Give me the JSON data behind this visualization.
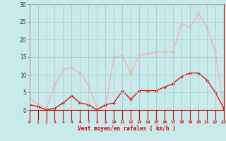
{
  "hours": [
    0,
    1,
    2,
    3,
    4,
    5,
    6,
    7,
    8,
    9,
    10,
    11,
    12,
    13,
    14,
    15,
    16,
    17,
    18,
    19,
    20,
    21,
    22,
    23
  ],
  "wind_avg": [
    1.5,
    1.0,
    0.0,
    0.5,
    2.0,
    4.0,
    2.0,
    1.5,
    0.0,
    1.5,
    2.0,
    5.5,
    3.0,
    5.5,
    5.5,
    5.5,
    6.5,
    7.5,
    9.5,
    10.5,
    10.5,
    8.5,
    5.0,
    0.5
  ],
  "wind_gust": [
    3.5,
    1.5,
    0.5,
    7.0,
    11.5,
    12.0,
    10.5,
    7.0,
    0.5,
    1.0,
    15.0,
    15.5,
    10.5,
    15.5,
    16.0,
    16.5,
    16.5,
    16.5,
    24.5,
    23.5,
    27.5,
    23.5,
    16.5,
    0.5
  ],
  "color_avg": "#dd0000",
  "color_gust": "#ffaaaa",
  "bg_color": "#c8eaea",
  "grid_color": "#aacccc",
  "xlabel": "Vent moyen/en rafales ( km/h )",
  "ylabel_ticks": [
    0,
    5,
    10,
    15,
    20,
    25,
    30
  ],
  "ylim": [
    0,
    30
  ],
  "xlim": [
    0,
    23
  ]
}
